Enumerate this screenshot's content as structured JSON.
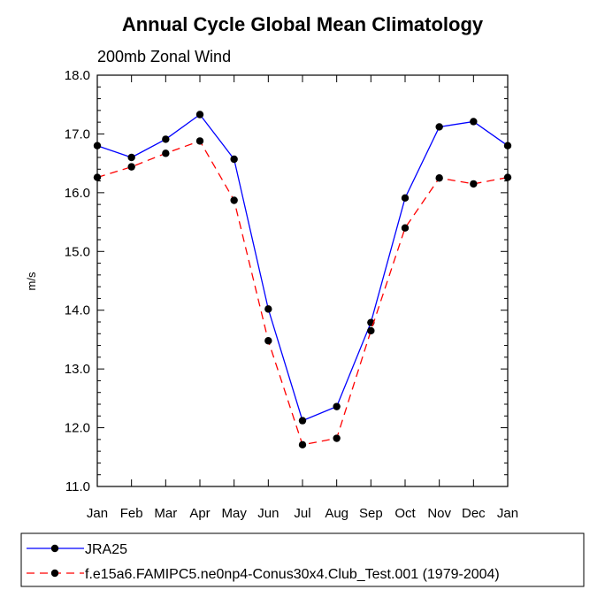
{
  "chart_data": {
    "type": "line",
    "title": "Annual Cycle Global Mean Climatology",
    "subtitle": "200mb Zonal Wind",
    "xlabel": "",
    "ylabel": "m/s",
    "categories": [
      "Jan",
      "Feb",
      "Mar",
      "Apr",
      "May",
      "Jun",
      "Jul",
      "Aug",
      "Sep",
      "Oct",
      "Nov",
      "Dec",
      "Jan"
    ],
    "ylim": [
      11.0,
      18.0
    ],
    "yticks": [
      "11.0",
      "12.0",
      "13.0",
      "14.0",
      "15.0",
      "16.0",
      "17.0",
      "18.0"
    ],
    "grid": false,
    "legend_position": "bottom",
    "series": [
      {
        "name": "JRA25",
        "color": "#0000ff",
        "line_style": "solid",
        "marker": "filled-circle",
        "values": [
          16.8,
          16.6,
          16.91,
          17.33,
          16.57,
          14.02,
          12.12,
          12.36,
          13.79,
          15.91,
          17.12,
          17.21,
          16.8
        ]
      },
      {
        "name": "f.e15a6.FAMIPC5.ne0np4-Conus30x4.Club_Test.001 (1979-2004)",
        "color": "#ff0000",
        "line_style": "dashed",
        "marker": "filled-circle",
        "values": [
          16.26,
          16.44,
          16.67,
          16.88,
          15.87,
          13.48,
          11.71,
          11.82,
          13.65,
          15.4,
          16.25,
          16.15,
          16.26
        ]
      }
    ]
  }
}
